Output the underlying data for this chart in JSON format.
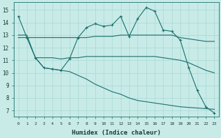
{
  "xlabel": "Humidex (Indice chaleur)",
  "background_color": "#c8ebe8",
  "grid_color": "#a8d8d4",
  "line_color": "#1a6e6a",
  "xlim": [
    -0.5,
    23.5
  ],
  "ylim": [
    6.5,
    15.6
  ],
  "yticks": [
    7,
    8,
    9,
    10,
    11,
    12,
    13,
    14,
    15
  ],
  "xticks": [
    0,
    1,
    2,
    3,
    4,
    5,
    6,
    7,
    8,
    9,
    10,
    11,
    12,
    13,
    14,
    15,
    16,
    17,
    18,
    19,
    20,
    21,
    22,
    23
  ],
  "line1_x": [
    0,
    1,
    2,
    3,
    4,
    5,
    6,
    7,
    8,
    9,
    10,
    11,
    12,
    13,
    14,
    15,
    16,
    17,
    18,
    19,
    20,
    21,
    22,
    23
  ],
  "line1_y": [
    14.5,
    12.8,
    11.2,
    10.4,
    10.3,
    10.2,
    11.1,
    12.8,
    13.6,
    13.9,
    13.7,
    13.8,
    14.5,
    12.9,
    14.3,
    15.2,
    14.9,
    13.4,
    13.3,
    12.6,
    10.4,
    8.6,
    7.3,
    6.8
  ],
  "line2_x": [
    0,
    1,
    2,
    3,
    4,
    5,
    6,
    7,
    8,
    9,
    10,
    11,
    12,
    13,
    14,
    15,
    16,
    17,
    18,
    19,
    20,
    21,
    22,
    23
  ],
  "line2_y": [
    12.8,
    12.8,
    12.8,
    12.8,
    12.8,
    12.8,
    12.8,
    12.8,
    12.8,
    12.9,
    12.9,
    12.9,
    13.0,
    13.0,
    13.0,
    13.0,
    13.0,
    13.0,
    13.0,
    12.8,
    12.7,
    12.6,
    12.5,
    12.5
  ],
  "line3_x": [
    2,
    3,
    4,
    5,
    6,
    7,
    8,
    9,
    10,
    11,
    12,
    13,
    14,
    15,
    16,
    17,
    18,
    19,
    20,
    21,
    22,
    23
  ],
  "line3_y": [
    11.2,
    11.2,
    11.2,
    11.1,
    11.2,
    11.2,
    11.3,
    11.3,
    11.3,
    11.3,
    11.3,
    11.3,
    11.3,
    11.3,
    11.3,
    11.2,
    11.1,
    11.0,
    10.8,
    10.5,
    10.2,
    10.0
  ],
  "line4_x": [
    0,
    1,
    2,
    3,
    4,
    5,
    6,
    7,
    8,
    9,
    10,
    11,
    12,
    13,
    14,
    15,
    16,
    17,
    18,
    19,
    20,
    21,
    22,
    23
  ],
  "line4_y": [
    13.0,
    13.0,
    11.2,
    10.4,
    10.3,
    10.2,
    10.1,
    9.8,
    9.5,
    9.1,
    8.8,
    8.5,
    8.3,
    8.0,
    7.8,
    7.7,
    7.6,
    7.5,
    7.4,
    7.3,
    7.25,
    7.2,
    7.15,
    7.1
  ]
}
